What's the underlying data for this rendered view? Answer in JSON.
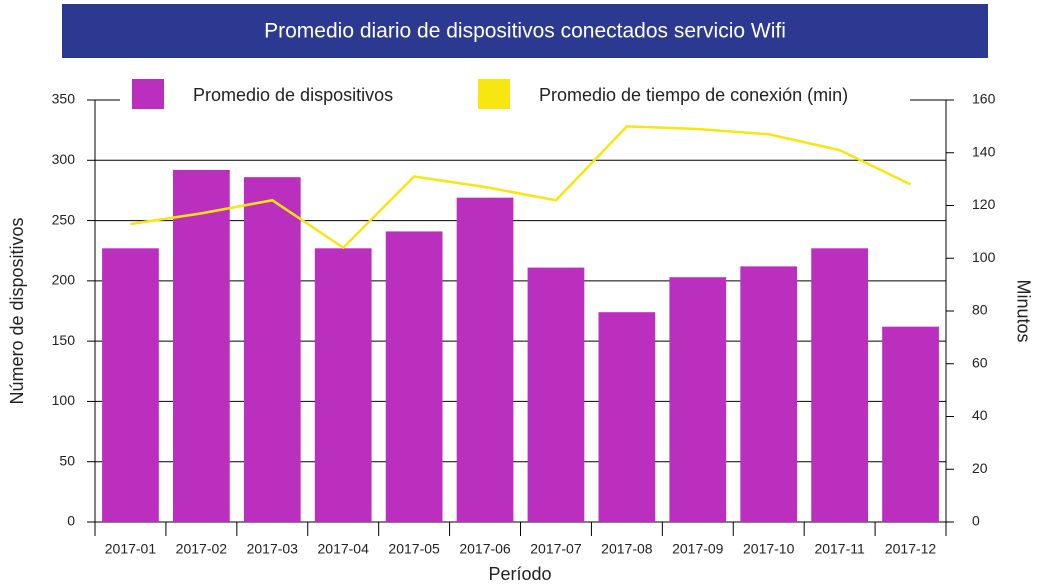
{
  "chart_data": {
    "type": "bar_line",
    "title": "Promedio diario de dispositivos conectados servicio Wifi",
    "x_label": "Período",
    "y_label": "Número de dispositivos",
    "y2_label": "Minutos",
    "categories": [
      "2017-01",
      "2017-02",
      "2017-03",
      "2017-04",
      "2017-05",
      "2017-06",
      "2017-07",
      "2017-08",
      "2017-09",
      "2017-10",
      "2017-11",
      "2017-12"
    ],
    "series": [
      {
        "name": "Promedio de dispositivos",
        "type": "bar",
        "color": "#bb2fbe",
        "values": [
          227,
          292,
          286,
          227,
          241,
          269,
          211,
          174,
          203,
          212,
          227,
          162
        ]
      },
      {
        "name": "Promedio de tiempo de conexión (min)",
        "type": "line",
        "axis": "y2",
        "color": "#f7e60f",
        "values": [
          113,
          117,
          122,
          104,
          131,
          127,
          122,
          150,
          149,
          147,
          141,
          128
        ]
      }
    ],
    "ylim": [
      0,
      350
    ],
    "yticks": [
      0,
      50,
      100,
      150,
      200,
      250,
      300,
      350
    ],
    "y2lim": [
      0,
      160
    ],
    "y2ticks": [
      0,
      20,
      40,
      60,
      80,
      100,
      120,
      140,
      160
    ],
    "grid": true,
    "title_color": "#2b3990"
  }
}
